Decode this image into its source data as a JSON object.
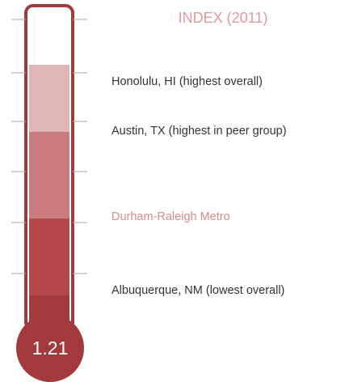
{
  "header": {
    "title": "INDEX (2011)"
  },
  "labels": [
    "Honolulu, HI (highest overall)",
    "Austin, TX (highest in peer group)",
    "Durham-Raleigh Metro",
    "Albuquerque, NM (lowest overall)"
  ],
  "bulb": {
    "value": 1.21
  }
}
